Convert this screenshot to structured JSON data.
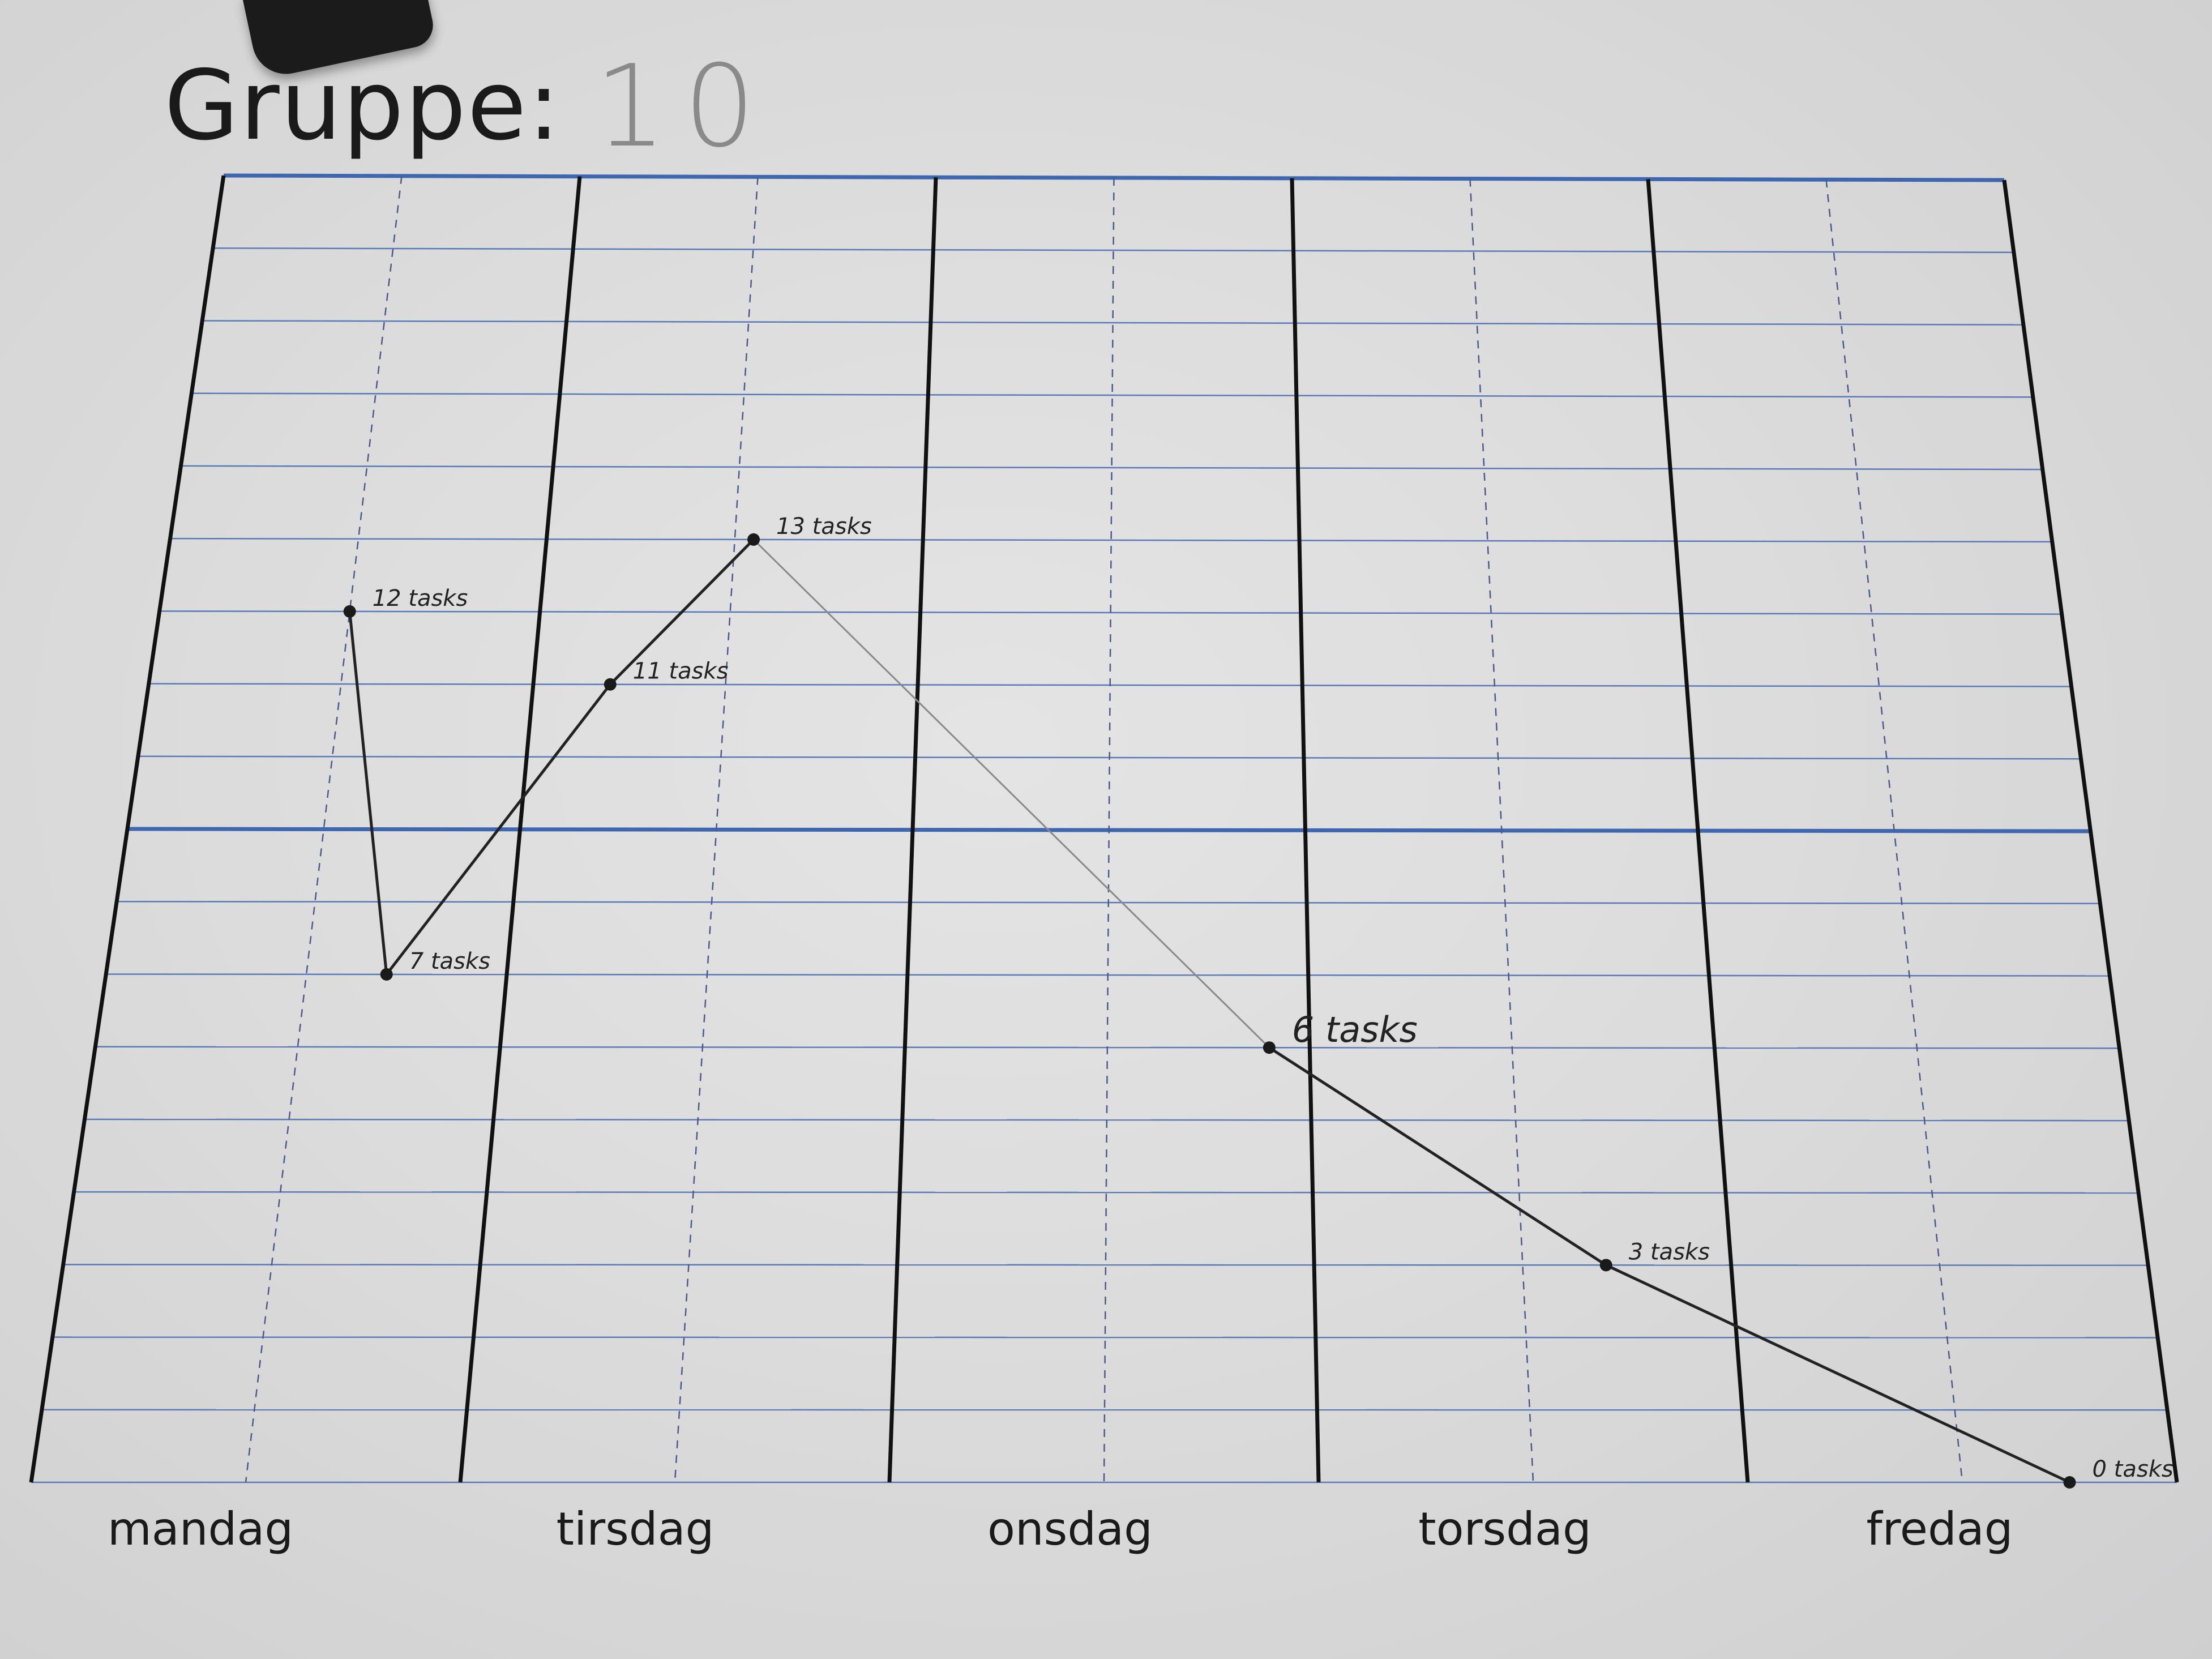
{
  "page": {
    "title_label": "Gruppe:",
    "group_number": "10"
  },
  "chart_data": {
    "type": "line",
    "title": "Gruppe: 10",
    "xlabel": "",
    "ylabel": "",
    "categories": [
      "mandag",
      "tirsdag",
      "onsdag",
      "torsdag",
      "fredag"
    ],
    "xlim": [
      0,
      5
    ],
    "ylim": [
      0,
      18
    ],
    "grid": true,
    "series": [
      {
        "points": [
          {
            "x": 0.5,
            "y": 12,
            "label": "12 tasks"
          },
          {
            "x": 0.7,
            "y": 7,
            "label": "7 tasks"
          },
          {
            "x": 1.2,
            "y": 11,
            "label": "11 tasks"
          },
          {
            "x": 1.55,
            "y": 13,
            "label": "13 tasks"
          },
          {
            "x": 2.9,
            "y": 6,
            "label": "6 tasks"
          },
          {
            "x": 3.7,
            "y": 3,
            "label": "3 tasks"
          },
          {
            "x": 4.75,
            "y": 0,
            "label": "0 tasks"
          }
        ]
      }
    ],
    "colors": {
      "grid_line": "#5b79b5",
      "major_grid_line": "#3f67b0",
      "day_divider": "#111111",
      "quarter_divider": "#4a5a8a",
      "line": "#222222",
      "faint_line": "#8a8a8a"
    }
  }
}
